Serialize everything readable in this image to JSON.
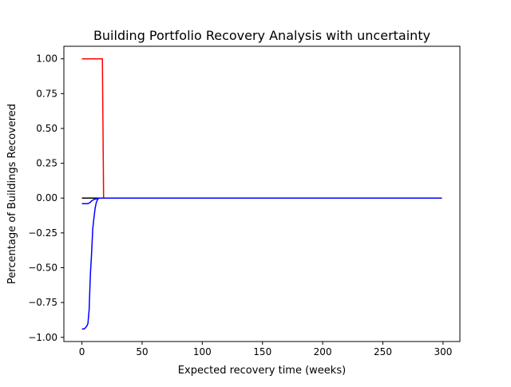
{
  "chart_data": {
    "type": "line",
    "title": "Building Portfolio Recovery Analysis with uncertainty",
    "xlabel": "Expected recovery time (weeks)",
    "ylabel": "Percentage of Buildings Recovered",
    "xlim": [
      -15,
      314
    ],
    "ylim": [
      -1.03,
      1.09
    ],
    "xticks": [
      0,
      50,
      100,
      150,
      200,
      250,
      300
    ],
    "yticks": [
      -1.0,
      -0.75,
      -0.5,
      -0.25,
      0.0,
      0.25,
      0.5,
      0.75,
      1.0
    ],
    "xtick_labels": [
      "0",
      "50",
      "100",
      "150",
      "200",
      "250",
      "300"
    ],
    "ytick_labels": [
      "−1.00",
      "−0.75",
      "−0.50",
      "−0.25",
      "0.00",
      "0.25",
      "0.50",
      "0.75",
      "1.00"
    ],
    "grid": false,
    "legend": false,
    "series": [
      {
        "color": "#000000",
        "x": [
          0,
          5,
          10,
          15,
          20,
          50,
          100,
          150,
          200,
          250,
          299
        ],
        "y": [
          0,
          0,
          0,
          0,
          0,
          0,
          0,
          0,
          0,
          0,
          0
        ]
      },
      {
        "color": "#ff0000",
        "x": [
          0,
          5,
          10,
          16,
          17,
          18,
          20,
          50,
          100,
          150,
          200,
          250,
          299
        ],
        "y": [
          1,
          1,
          1,
          1,
          1,
          0,
          0,
          0,
          0,
          0,
          0,
          0,
          0
        ]
      },
      {
        "color": "#0000ff",
        "x": [
          0,
          1,
          2,
          3,
          4,
          5,
          6,
          7,
          8,
          9,
          10,
          11,
          12,
          13,
          14,
          15,
          16,
          17,
          18,
          19,
          20,
          50,
          100,
          150,
          200,
          250,
          299
        ],
        "y": [
          -0.94,
          -0.94,
          -0.94,
          -0.93,
          -0.92,
          -0.9,
          -0.8,
          -0.55,
          -0.4,
          -0.22,
          -0.14,
          -0.07,
          -0.03,
          -0.01,
          0,
          0,
          0,
          0,
          0,
          0,
          0,
          0,
          0,
          0,
          0,
          0,
          0
        ]
      },
      {
        "color": "#0000ff",
        "x": [
          0,
          2,
          4,
          5,
          6,
          7,
          8,
          9,
          10,
          12,
          14,
          16,
          18,
          20,
          50,
          100,
          150,
          200,
          250,
          299
        ],
        "y": [
          -0.04,
          -0.04,
          -0.04,
          -0.04,
          -0.035,
          -0.03,
          -0.02,
          -0.015,
          -0.01,
          -0.005,
          0,
          0,
          0,
          0,
          0,
          0,
          0,
          0,
          0,
          0
        ]
      }
    ]
  }
}
